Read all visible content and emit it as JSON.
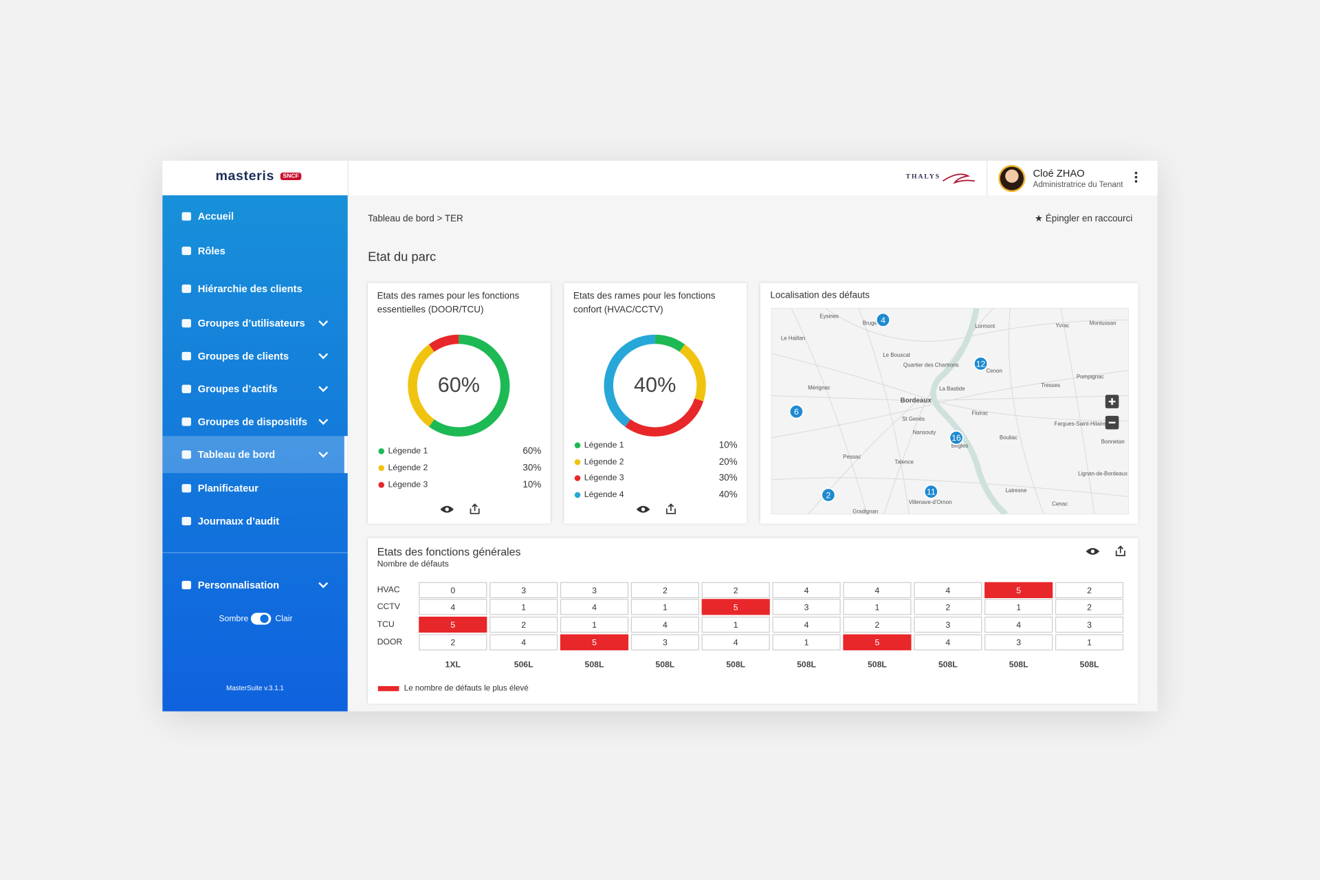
{
  "header": {
    "logo": "masteris",
    "logo_badge": "SNCF",
    "partner_logo": "THALYS",
    "user": {
      "name": "Cloé ZHAO",
      "role": "Administratrice du Tenant"
    }
  },
  "sidebar": {
    "items": [
      {
        "label": "Accueil",
        "submenu": false
      },
      {
        "label": "Rôles",
        "submenu": false
      },
      {
        "label": "Hiérarchie des clients",
        "submenu": false
      },
      {
        "label": "Groupes d’utilisateurs",
        "submenu": true
      },
      {
        "label": "Groupes de clients",
        "submenu": true
      },
      {
        "label": "Groupes d’actifs",
        "submenu": true
      },
      {
        "label": "Groupes de dispositifs",
        "submenu": true
      },
      {
        "label": "Tableau de bord",
        "submenu": true,
        "active": true
      },
      {
        "label": "Planificateur",
        "submenu": false
      },
      {
        "label": "Journaux d’audit",
        "submenu": false
      }
    ],
    "settings": {
      "label": "Personnalisation",
      "theme_dark": "Sombre",
      "theme_light": "Clair"
    },
    "version": "MasterSuite v.3.1.1"
  },
  "breadcrumb": "Tableau de bord > TER",
  "pin_action": "Épingler en raccourci",
  "section_title": "Etat du parc",
  "map": {
    "title": "Localisation des défauts",
    "places": [
      "Eysines",
      "Bruges",
      "Le Haillan",
      "Le Bouscat",
      "Lormont",
      "Yvrac",
      "Montussan",
      "Quartier des Chartrons",
      "Cenon",
      "Pompignac",
      "Mérignac",
      "La Bastide",
      "Tresses",
      "Bordeaux",
      "Floirac",
      "St Genès",
      "Fargues-Saint-Hilaire",
      "Nansouty",
      "Bouliac",
      "Bonnetan",
      "Bègles",
      "Pessac",
      "Talence",
      "Lignan-de-Bordeaux",
      "Latresne",
      "Villenave-d'Ornon",
      "Cenac",
      "Gradignan"
    ],
    "markers": [
      4,
      12,
      6,
      16,
      2,
      11
    ]
  },
  "chart_data": [
    {
      "type": "donut",
      "title": "Etats des rames pour les fonctions essentielles (DOOR/TCU)",
      "center_label": "60%",
      "categories": [
        "Légende 1",
        "Légende 2",
        "Légende 3"
      ],
      "values": [
        60,
        30,
        10
      ],
      "value_labels": [
        "60%",
        "30%",
        "10%"
      ],
      "colors": [
        "#1db954",
        "#f0c30f",
        "#e8272a"
      ]
    },
    {
      "type": "donut",
      "title": "Etats des rames pour les fonctions confort (HVAC/CCTV)",
      "center_label": "40%",
      "categories": [
        "Légende 1",
        "Légende 2",
        "Légende 3",
        "Légende 4"
      ],
      "values": [
        10,
        20,
        30,
        40
      ],
      "value_labels": [
        "10%",
        "20%",
        "30%",
        "40%"
      ],
      "colors": [
        "#1db954",
        "#f0c30f",
        "#e8272a",
        "#27a7d8"
      ]
    },
    {
      "type": "heatmap",
      "title": "Etats des fonctions générales",
      "subtitle": "Nombre de défauts",
      "rows": [
        "HVAC",
        "CCTV",
        "TCU",
        "DOOR"
      ],
      "columns": [
        "1XL",
        "506L",
        "508L",
        "508L",
        "508L",
        "508L",
        "508L",
        "508L",
        "508L",
        "508L"
      ],
      "values": [
        [
          0,
          3,
          3,
          2,
          2,
          4,
          4,
          4,
          5,
          2
        ],
        [
          4,
          1,
          4,
          1,
          5,
          3,
          1,
          2,
          1,
          2
        ],
        [
          5,
          2,
          1,
          4,
          1,
          4,
          2,
          3,
          4,
          3
        ],
        [
          2,
          4,
          5,
          3,
          4,
          1,
          5,
          4,
          3,
          1
        ]
      ],
      "highlight_color": "#e8272a",
      "legend": "Le nombre de défauts le plus élevé"
    }
  ]
}
